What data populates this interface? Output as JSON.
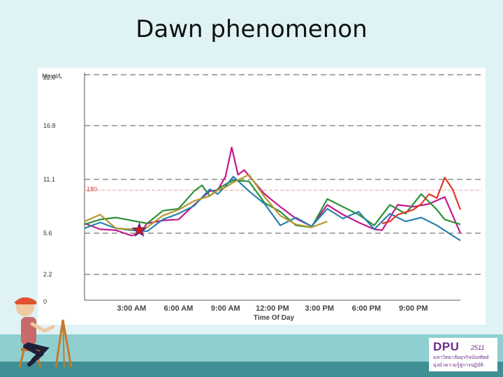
{
  "slide": {
    "title": "Dawn phenomenon"
  },
  "logo": {
    "name": "DPU",
    "year": "2511",
    "line1": "มหาวิทยาลัยธุรกิจบัณฑิตย์",
    "line2": "มุ่งนำความรู้สู่การปฏิบัติ"
  },
  "colors": {
    "background": "#dff3f5",
    "footer_light": "#8fcfd0",
    "footer_dark": "#3f8f95",
    "reference_line": "#e8a0a0",
    "marker": "#d01c1c"
  },
  "chart_data": {
    "type": "line",
    "title": "",
    "xlabel": "Time Of Day",
    "ylabel": "Mmol/L",
    "y_ticks": [
      "22.0",
      "16.8",
      "11.1",
      "5.6",
      "2.2",
      "0"
    ],
    "x_ticks": [
      "3:00 AM",
      "6:00 AM",
      "9:00 AM",
      "12:00 PM",
      "3:00 PM",
      "6:00 PM",
      "9:00 PM"
    ],
    "x_tick_hours": [
      3,
      6,
      9,
      12,
      15,
      18,
      21
    ],
    "x_range_hours": [
      0,
      24
    ],
    "reference": {
      "label": "180",
      "value": 10
    },
    "marker": {
      "shape": "star",
      "hour": 3.5,
      "value": 5.9
    },
    "series": [
      {
        "color": "#c2188a",
        "points": [
          [
            0,
            6.6
          ],
          [
            1,
            6.0
          ],
          [
            2,
            5.9
          ],
          [
            3,
            5.4
          ],
          [
            3.5,
            5.6
          ],
          [
            4,
            6.6
          ],
          [
            5,
            6.9
          ],
          [
            6,
            7.0
          ],
          [
            7,
            8.5
          ],
          [
            8,
            9.9
          ],
          [
            8.5,
            10.0
          ],
          [
            9,
            11.4
          ],
          [
            9.4,
            14.5
          ],
          [
            9.8,
            11.6
          ],
          [
            10.2,
            12.1
          ],
          [
            10.8,
            10.9
          ],
          [
            11.5,
            9.6
          ],
          [
            12.5,
            8.3
          ],
          [
            13.5,
            7.1
          ],
          [
            14.5,
            6.3
          ],
          [
            15.5,
            8.5
          ],
          [
            16.5,
            7.5
          ],
          [
            17.5,
            6.7
          ],
          [
            18.5,
            6.0
          ],
          [
            19,
            5.9
          ],
          [
            20,
            8.5
          ],
          [
            21,
            8.3
          ],
          [
            22,
            8.6
          ],
          [
            23,
            9.3
          ],
          [
            24,
            5.6
          ]
        ]
      },
      {
        "color": "#2b8f3a",
        "points": [
          [
            0,
            6.5
          ],
          [
            1,
            7.0
          ],
          [
            2,
            7.2
          ],
          [
            3,
            6.9
          ],
          [
            4,
            6.6
          ],
          [
            5,
            7.9
          ],
          [
            6,
            8.1
          ],
          [
            7,
            9.9
          ],
          [
            7.5,
            10.5
          ],
          [
            8,
            9.4
          ],
          [
            8.5,
            10.1
          ],
          [
            9,
            10.6
          ],
          [
            9.5,
            11.0
          ],
          [
            10.5,
            10.9
          ],
          [
            11.5,
            8.7
          ],
          [
            12.5,
            7.8
          ],
          [
            13.5,
            6.4
          ],
          [
            14.5,
            6.2
          ],
          [
            15.5,
            9.1
          ],
          [
            16.5,
            8.3
          ],
          [
            17.5,
            7.5
          ],
          [
            18.5,
            6.4
          ],
          [
            19.5,
            8.5
          ],
          [
            20.5,
            7.6
          ],
          [
            21.5,
            9.6
          ],
          [
            22.5,
            8.0
          ],
          [
            23,
            7.0
          ],
          [
            24,
            6.5
          ]
        ]
      },
      {
        "color": "#2a7fae",
        "points": [
          [
            0,
            6.1
          ],
          [
            1,
            6.7
          ],
          [
            2,
            6.1
          ],
          [
            3,
            5.9
          ],
          [
            4,
            5.8
          ],
          [
            5,
            7.0
          ],
          [
            6,
            7.6
          ],
          [
            7,
            8.4
          ],
          [
            8,
            10.1
          ],
          [
            8.5,
            9.6
          ],
          [
            9,
            10.4
          ],
          [
            9.5,
            11.4
          ],
          [
            10.5,
            9.9
          ],
          [
            11.5,
            8.6
          ],
          [
            12.5,
            6.4
          ],
          [
            13.5,
            7.2
          ],
          [
            14.5,
            6.3
          ],
          [
            15.5,
            8.1
          ],
          [
            16.5,
            7.1
          ],
          [
            17.5,
            7.8
          ],
          [
            18.5,
            6.0
          ],
          [
            19.5,
            7.6
          ],
          [
            20.5,
            6.8
          ],
          [
            21.5,
            7.2
          ],
          [
            22.5,
            6.4
          ],
          [
            23.5,
            5.4
          ],
          [
            24,
            5.0
          ]
        ]
      },
      {
        "color": "#b49a2e",
        "points": [
          [
            0,
            6.8
          ],
          [
            1,
            7.5
          ],
          [
            2,
            6.1
          ],
          [
            3,
            6.0
          ],
          [
            4,
            6.2
          ],
          [
            5,
            7.4
          ],
          [
            6,
            8.0
          ],
          [
            7,
            8.9
          ],
          [
            8,
            9.4
          ],
          [
            8.5,
            10.0
          ],
          [
            9,
            10.3
          ],
          [
            9.5,
            10.8
          ],
          [
            10.5,
            11.6
          ],
          [
            11.5,
            9.3
          ],
          [
            12.5,
            7.4
          ],
          [
            13.5,
            6.5
          ],
          [
            14.5,
            6.2
          ],
          [
            15.5,
            6.8
          ]
        ]
      },
      {
        "color": "#e0392a",
        "points": [
          [
            19,
            6.6
          ],
          [
            19.5,
            6.8
          ],
          [
            20,
            7.5
          ],
          [
            21,
            8.0
          ],
          [
            21.5,
            8.6
          ],
          [
            22,
            9.6
          ],
          [
            22.5,
            9.2
          ],
          [
            23,
            11.3
          ],
          [
            23.5,
            10.1
          ],
          [
            24,
            8.0
          ]
        ]
      }
    ]
  }
}
